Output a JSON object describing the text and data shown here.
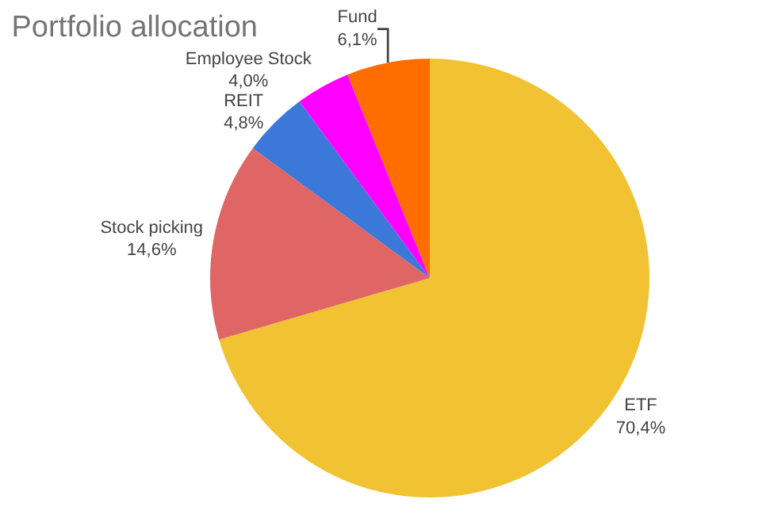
{
  "chart_data": {
    "type": "pie",
    "title": "Portfolio allocation",
    "categories": [
      "ETF",
      "Stock picking",
      "REIT",
      "Employee Stock",
      "Fund"
    ],
    "values": [
      70.4,
      14.6,
      4.8,
      4.0,
      6.1
    ],
    "value_labels": [
      "70,4%",
      "14,6%",
      "4,8%",
      "4,0%",
      "6,1%"
    ],
    "colors": [
      "#f1c232",
      "#e06666",
      "#3c78d8",
      "#ff00ff",
      "#ff6d01"
    ],
    "legend": false
  }
}
